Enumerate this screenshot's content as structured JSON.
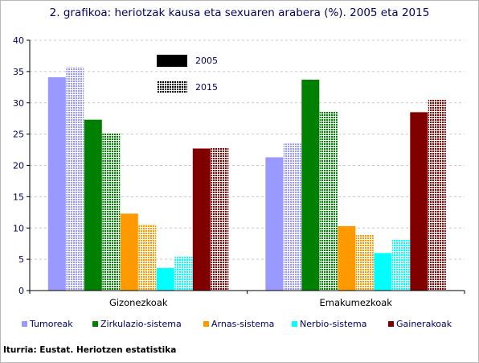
{
  "title": "2. grafikoa: heriotzak kausa eta sexuaren arabera (%). 2005 eta 2015",
  "source": "Iturria: Eustat. Heriotzen estatistika",
  "years": [
    {
      "label": "2005",
      "style": "solid"
    },
    {
      "label": "2015",
      "style": "hatched"
    }
  ],
  "chart_data": {
    "type": "bar",
    "title": "2. grafikoa: heriotzak kausa eta sexuaren arabera (%). 2005 eta 2015",
    "categories": [
      "Gizonezkoak",
      "Emakumezkoak"
    ],
    "ylim": [
      0,
      40
    ],
    "yticks": [
      0,
      5,
      10,
      15,
      20,
      25,
      30,
      35,
      40
    ],
    "grid": true,
    "series": [
      {
        "name": "Tumoreak",
        "color": "#9999ff",
        "values_2005": [
          34.1,
          21.3
        ],
        "values_2015": [
          35.7,
          23.5
        ]
      },
      {
        "name": "Zirkulazio-sistema",
        "color": "#008000",
        "values_2005": [
          27.3,
          33.7
        ],
        "values_2015": [
          25.1,
          28.6
        ]
      },
      {
        "name": "Arnas-sistema",
        "color": "#ff9900",
        "values_2005": [
          12.3,
          10.3
        ],
        "values_2015": [
          10.6,
          9.0
        ]
      },
      {
        "name": "Nerbio-sistema",
        "color": "#00ffff",
        "values_2005": [
          3.6,
          6.0
        ],
        "values_2015": [
          5.4,
          8.1
        ]
      },
      {
        "name": "Gainerakoak",
        "color": "#800000",
        "values_2005": [
          22.7,
          28.5
        ],
        "values_2015": [
          22.9,
          30.6
        ]
      }
    ]
  }
}
